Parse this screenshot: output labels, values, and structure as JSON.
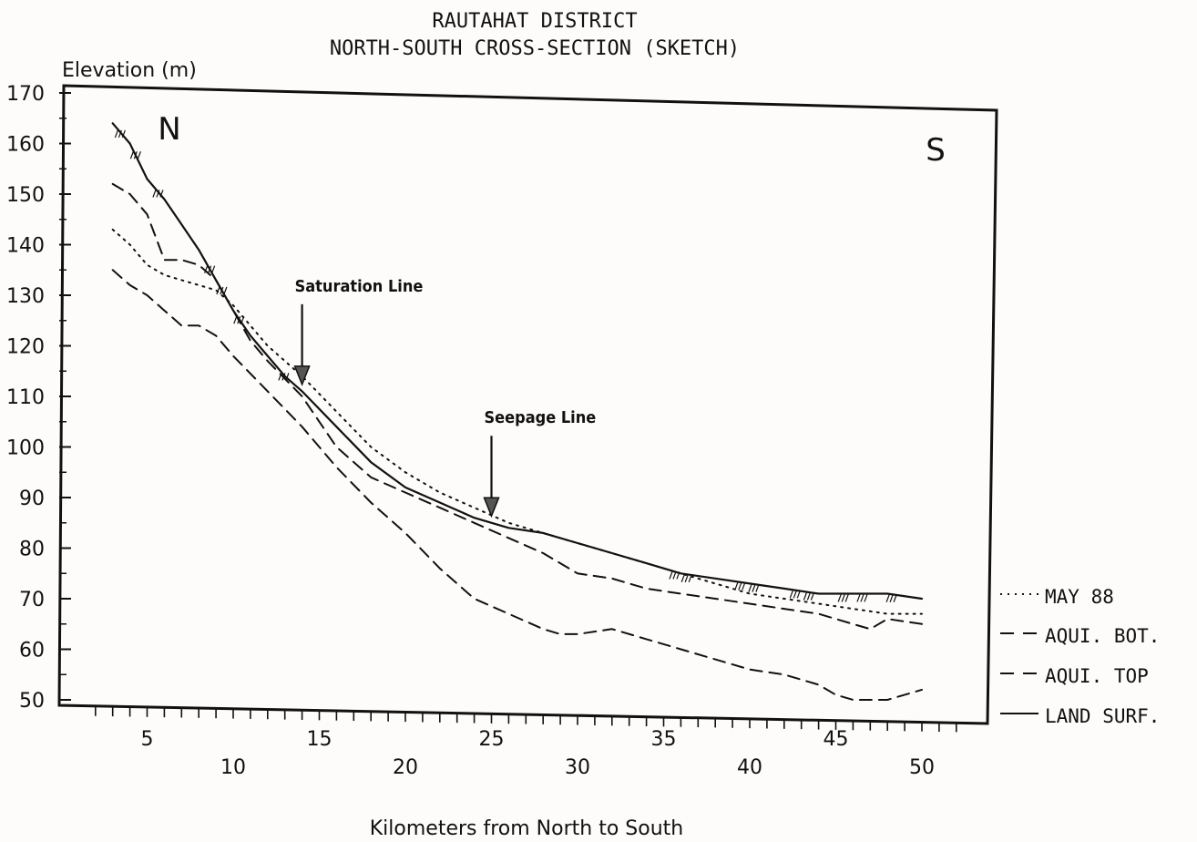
{
  "chart_data": {
    "type": "line",
    "title": "RAUTAHAT DISTRICT",
    "subtitle": "NORTH-SOUTH CROSS-SECTION (SKETCH)",
    "xlabel": "Kilometers from North to South",
    "ylabel": "Elevation (m)",
    "xlim": [
      0,
      54
    ],
    "ylim": [
      50,
      170
    ],
    "y_ticks": [
      50,
      60,
      70,
      80,
      90,
      100,
      110,
      120,
      130,
      140,
      150,
      160,
      170
    ],
    "x_ticks_upper": [
      5,
      15,
      25,
      35,
      45
    ],
    "x_ticks_lower": [
      10,
      20,
      30,
      40,
      50
    ],
    "direction_left": "N",
    "direction_right": "S",
    "grid": false,
    "legend_position": "right-bottom",
    "series": [
      {
        "name": "MAY 88",
        "style": "dotted",
        "x": [
          3,
          4,
          5,
          6,
          7,
          8,
          9,
          10,
          11,
          12,
          14,
          16,
          18,
          20,
          22,
          24,
          26,
          28,
          30,
          32,
          34,
          36,
          38,
          40,
          42,
          44,
          46,
          48,
          50
        ],
        "y": [
          143,
          140,
          136,
          134,
          133,
          132,
          131,
          128,
          124,
          120,
          114,
          107,
          100,
          95,
          91,
          88,
          85,
          83,
          81,
          79,
          77,
          75,
          73,
          71,
          70,
          69,
          68,
          67,
          67
        ]
      },
      {
        "name": "AQUI. BOT.",
        "style": "dashed",
        "x": [
          3,
          4,
          5,
          6,
          7,
          8,
          9,
          10,
          12,
          14,
          16,
          18,
          20,
          22,
          24,
          26,
          28,
          29,
          30,
          32,
          34,
          36,
          38,
          40,
          42,
          44,
          45,
          46,
          48,
          50
        ],
        "y": [
          135,
          132,
          130,
          127,
          124,
          124,
          122,
          118,
          111,
          104,
          96,
          89,
          83,
          76,
          70,
          67,
          64,
          63,
          63,
          64,
          62,
          60,
          58,
          56,
          55,
          53,
          51,
          50,
          50,
          52
        ]
      },
      {
        "name": "AQUI. TOP",
        "style": "dashed",
        "x": [
          3,
          4,
          5,
          6,
          7,
          8,
          9,
          10,
          11,
          12,
          14,
          16,
          18,
          20,
          22,
          24,
          26,
          28,
          30,
          32,
          34,
          36,
          38,
          40,
          42,
          44,
          46,
          47,
          48,
          50
        ],
        "y": [
          152,
          150,
          146,
          137,
          137,
          136,
          133,
          127,
          121,
          117,
          110,
          100,
          94,
          91,
          88,
          85,
          82,
          79,
          75,
          74,
          72,
          71,
          70,
          69,
          68,
          67,
          65,
          64,
          66,
          65
        ]
      },
      {
        "name": "LAND SURF.",
        "style": "solid",
        "x": [
          3,
          4,
          5,
          6,
          7,
          8,
          9,
          10,
          11,
          12,
          13,
          14,
          16,
          18,
          20,
          22,
          24,
          26,
          28,
          30,
          32,
          34,
          36,
          38,
          40,
          42,
          44,
          46,
          48,
          50
        ],
        "y": [
          164,
          160,
          153,
          149,
          144,
          139,
          133,
          127,
          122,
          118,
          114,
          111,
          104,
          97,
          92,
          89,
          86,
          84,
          83,
          81,
          79,
          77,
          75,
          74,
          73,
          72,
          71,
          71,
          71,
          70
        ]
      }
    ],
    "annotations": [
      {
        "text": "Saturation Line",
        "x": 14,
        "y": 112
      },
      {
        "text": "Seepage Line",
        "x": 25,
        "y": 86
      }
    ]
  }
}
